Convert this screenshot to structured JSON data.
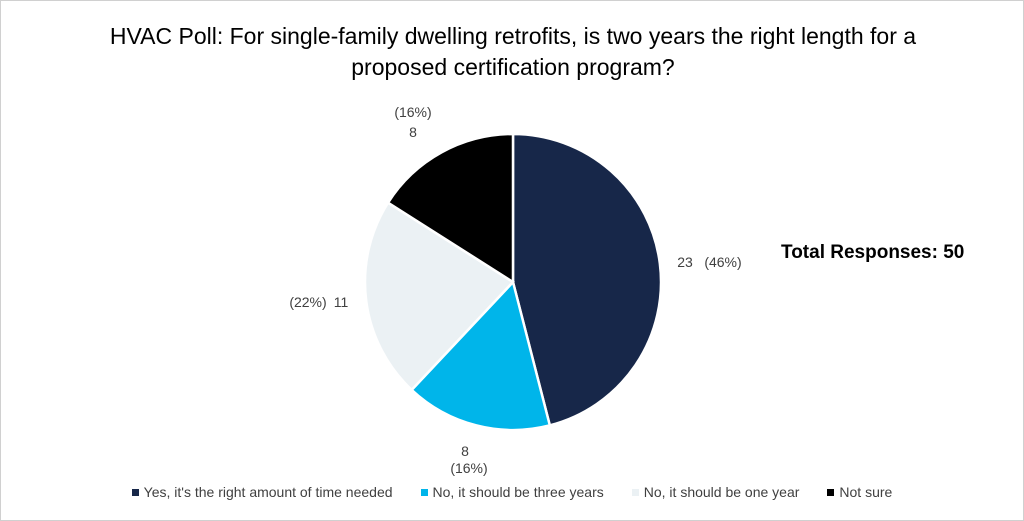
{
  "chart_data": {
    "type": "pie",
    "title": "HVAC Poll: For single-family dwelling retrofits, is two years the right length for a proposed certification program?",
    "annotation": "Total Responses: 50",
    "slices": [
      {
        "name": "Yes, it's the right amount of time needed",
        "value": 23,
        "percent_label": "(46%)",
        "color": "#172749"
      },
      {
        "name": "No, it should be three years",
        "value": 8,
        "percent_label": "(16%)",
        "color": "#00B5EA"
      },
      {
        "name": "No, it should be one year",
        "value": 11,
        "percent_label": "(22%)",
        "color": "#EBF1F4"
      },
      {
        "name": "Not sure",
        "value": 8,
        "percent_label": "(16%)",
        "color": "#000000"
      }
    ],
    "legend_position": "bottom"
  }
}
